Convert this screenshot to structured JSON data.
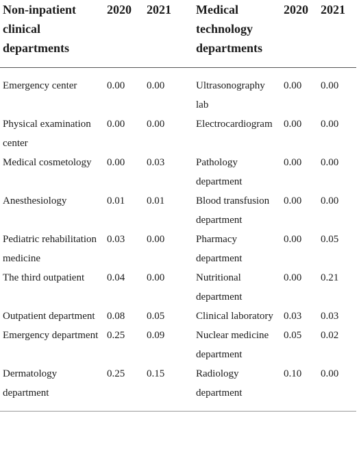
{
  "header": {
    "col1": "Non-inpatient clinical departments",
    "col1_lines": [
      "Non-inpatient",
      "clinical",
      "departments"
    ],
    "col2": "2020",
    "col3": "2021",
    "col4_lines": [
      "Medical",
      "technology",
      "departments"
    ],
    "col5": "2020",
    "col6": "2021"
  },
  "rows": [
    {
      "left": "Emergency center",
      "l2020": "0.00",
      "l2021": "0.00",
      "right": "Ultrasonography lab",
      "r2020": "0.00",
      "r2021": "0.00"
    },
    {
      "left": "Physical examination center",
      "l2020": "0.00",
      "l2021": "0.00",
      "right": "Electrocardiogram",
      "r2020": "0.00",
      "r2021": "0.00"
    },
    {
      "left": "Medical cosmetology",
      "l2020": "0.00",
      "l2021": "0.03",
      "right": "Pathology department",
      "r2020": "0.00",
      "r2021": "0.00"
    },
    {
      "left": "Anesthesiology",
      "l2020": "0.01",
      "l2021": "0.01",
      "right": "Blood transfusion department",
      "r2020": "0.00",
      "r2021": "0.00"
    },
    {
      "left": "Pediatric rehabilitation medicine",
      "l2020": "0.03",
      "l2021": "0.00",
      "right": "Pharmacy department",
      "r2020": "0.00",
      "r2021": "0.05"
    },
    {
      "left": "The third outpatient",
      "l2020": "0.04",
      "l2021": "0.00",
      "right": "Nutritional department",
      "r2020": "0.00",
      "r2021": "0.21"
    },
    {
      "left": "Outpatient department",
      "l2020": "0.08",
      "l2021": "0.05",
      "right": "Clinical laboratory",
      "r2020": "0.03",
      "r2021": "0.03"
    },
    {
      "left": "Emergency department",
      "l2020": "0.25",
      "l2021": "0.09",
      "right": "Nuclear medicine department",
      "r2020": "0.05",
      "r2021": "0.02"
    },
    {
      "left": "Dermatology department",
      "l2020": "0.25",
      "l2021": "0.15",
      "right": "Radiology department",
      "r2020": "0.10",
      "r2021": "0.00"
    }
  ]
}
